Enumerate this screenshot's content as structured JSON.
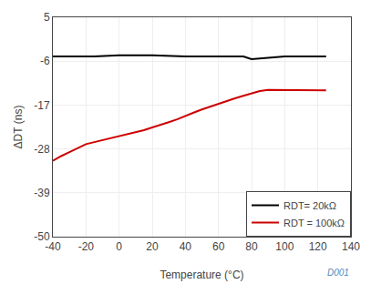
{
  "chart_data": {
    "type": "line",
    "title": "",
    "x_label": "Temperature (°C)",
    "y_label": "ΔDT (ns)",
    "xlim": [
      -40,
      140
    ],
    "ylim": [
      -50,
      5
    ],
    "xticks": [
      -40,
      -20,
      0,
      20,
      40,
      60,
      80,
      100,
      120,
      140
    ],
    "yticks": [
      5,
      -6,
      -17,
      -28,
      -39,
      -50
    ],
    "grid": true,
    "legend": "lower right",
    "series": [
      {
        "name": "RDT= 20kΩ",
        "color": "#000000",
        "x": [
          -40,
          -15,
          0,
          20,
          40,
          60,
          75,
          80,
          100,
          125
        ],
        "values": [
          -4.8,
          -4.8,
          -4.5,
          -4.5,
          -4.8,
          -4.8,
          -4.8,
          -5.5,
          -4.8,
          -4.8
        ]
      },
      {
        "name": "RDT = 100kΩ",
        "color": "#cc0000",
        "x": [
          -40,
          -35,
          -30,
          -25,
          -20,
          -15,
          -10,
          -5,
          0,
          5,
          10,
          15,
          20,
          25,
          30,
          35,
          40,
          45,
          50,
          55,
          60,
          65,
          70,
          75,
          80,
          85,
          90,
          100,
          110,
          125
        ],
        "values": [
          -31.0,
          -29.8,
          -28.8,
          -27.8,
          -26.8,
          -26.3,
          -25.8,
          -25.3,
          -24.7,
          -24.3,
          -23.8,
          -23.3,
          -22.6,
          -22.0,
          -21.3,
          -20.6,
          -19.7,
          -18.9,
          -18.1,
          -17.4,
          -16.7,
          -15.9,
          -15.3,
          -14.7,
          -14.1,
          -13.5,
          -13.2,
          -13.2,
          -13.2,
          -13.3
        ]
      }
    ],
    "annotations": [
      {
        "text": "D001",
        "color": "#5588bb"
      }
    ]
  }
}
